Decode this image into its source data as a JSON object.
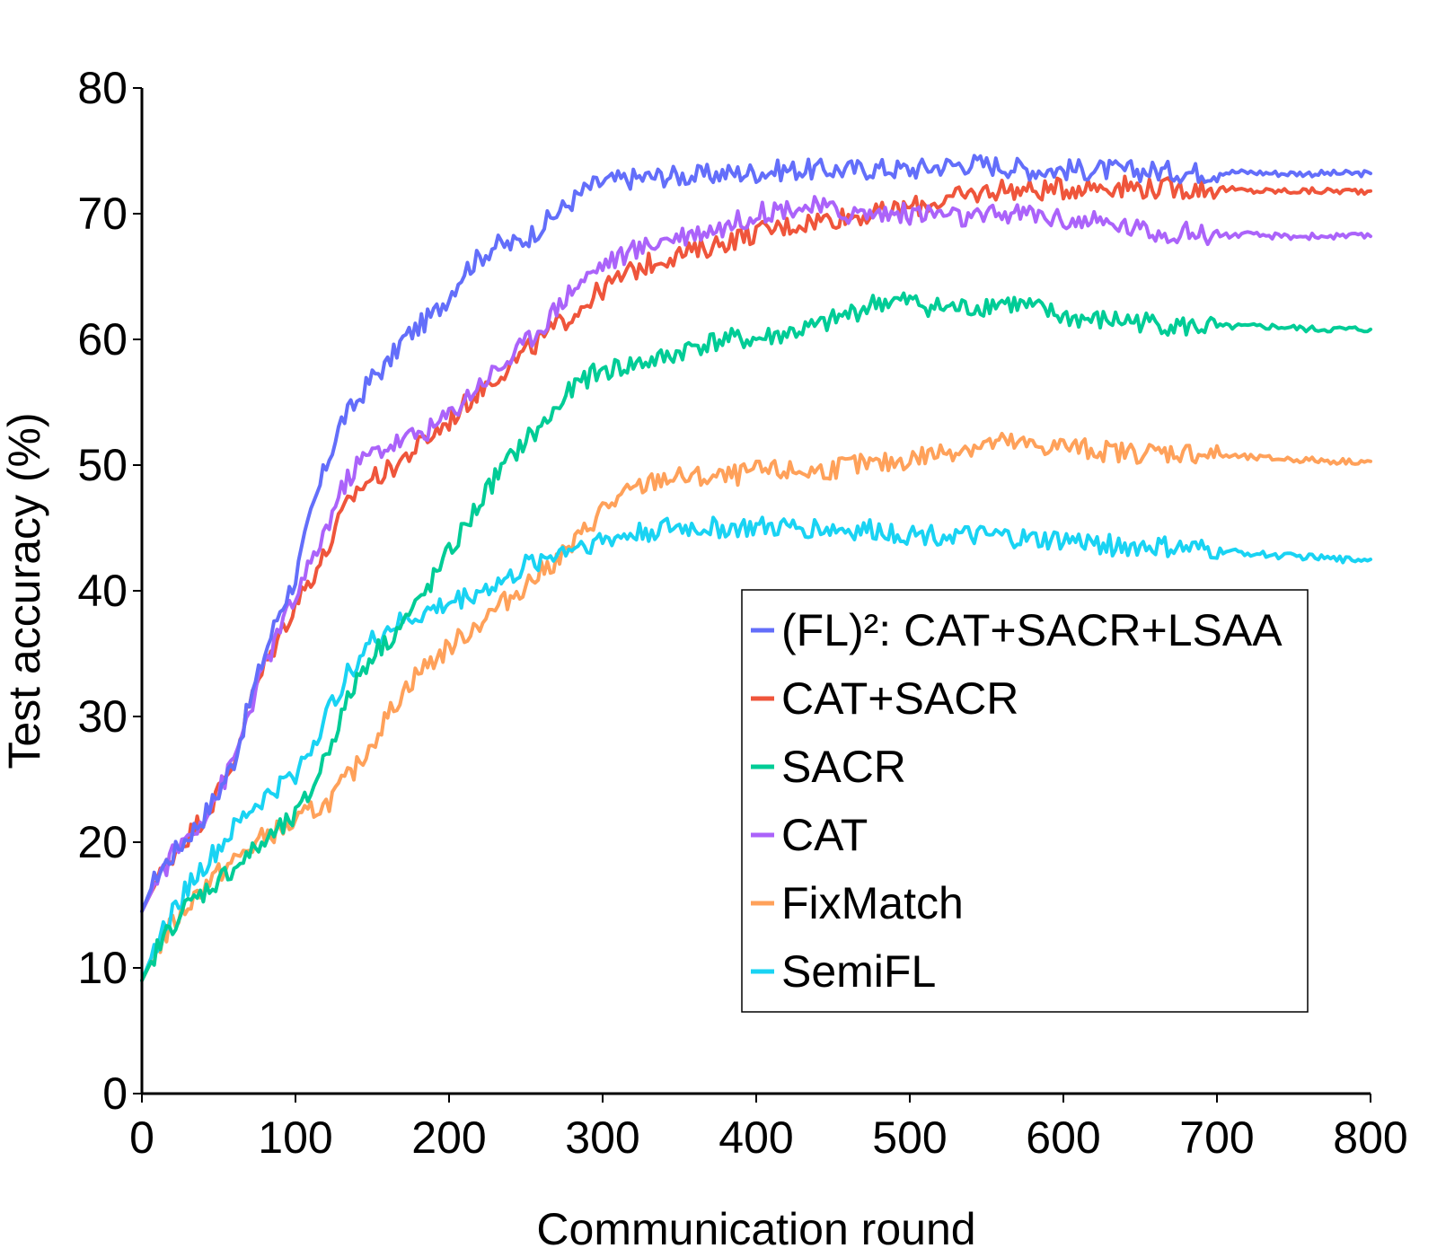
{
  "chart_data": {
    "type": "line",
    "title": "",
    "xlabel": "Communication round",
    "ylabel": "Test accuracy (%)",
    "xlim": [
      0,
      800
    ],
    "ylim": [
      0,
      80
    ],
    "xticks": [
      0,
      100,
      200,
      300,
      400,
      500,
      600,
      700,
      800
    ],
    "yticks": [
      0,
      10,
      20,
      30,
      40,
      50,
      60,
      70,
      80
    ],
    "grid": false,
    "legend_position": "center-right",
    "series": [
      {
        "name": "(FL)²: CAT+SACR+LSAA",
        "color": "#636efa",
        "x": [
          0,
          10,
          20,
          30,
          40,
          50,
          60,
          70,
          80,
          90,
          100,
          110,
          120,
          130,
          140,
          150,
          160,
          170,
          180,
          190,
          200,
          210,
          220,
          230,
          240,
          250,
          260,
          270,
          280,
          290,
          300,
          320,
          340,
          360,
          380,
          400,
          420,
          440,
          460,
          480,
          500,
          520,
          540,
          560,
          580,
          600,
          620,
          640,
          660,
          680,
          700,
          720,
          740,
          760,
          780,
          800
        ],
        "values": [
          14.5,
          17.5,
          19.0,
          20.5,
          22.0,
          24.0,
          26.5,
          31.0,
          35.0,
          38.5,
          41.0,
          46.0,
          50.0,
          53.5,
          55.0,
          57.0,
          58.0,
          60.0,
          61.0,
          62.0,
          63.5,
          65.5,
          66.5,
          67.5,
          67.5,
          68.0,
          69.0,
          70.0,
          71.0,
          72.0,
          72.5,
          72.8,
          73.0,
          73.0,
          73.2,
          73.3,
          73.5,
          73.5,
          73.5,
          73.6,
          73.5,
          73.8,
          74.0,
          73.8,
          73.5,
          73.5,
          73.5,
          73.4,
          73.4,
          73.3,
          73.3,
          73.3,
          73.2,
          73.2,
          73.2,
          73.2
        ]
      },
      {
        "name": "CAT+SACR",
        "color": "#ef553b",
        "x": [
          0,
          10,
          20,
          30,
          40,
          50,
          60,
          70,
          80,
          90,
          100,
          110,
          120,
          130,
          140,
          150,
          160,
          170,
          180,
          190,
          200,
          220,
          240,
          260,
          280,
          300,
          320,
          340,
          360,
          380,
          400,
          420,
          440,
          460,
          480,
          500,
          520,
          540,
          560,
          580,
          600,
          620,
          640,
          660,
          680,
          700,
          720,
          740,
          760,
          780,
          800
        ],
        "values": [
          14.5,
          17.0,
          19.0,
          20.5,
          22.0,
          24.0,
          26.5,
          31.0,
          34.0,
          36.5,
          39.0,
          41.0,
          43.0,
          46.0,
          48.0,
          49.0,
          49.5,
          50.5,
          51.5,
          52.5,
          53.5,
          56.0,
          58.0,
          60.0,
          62.0,
          64.0,
          65.5,
          66.5,
          67.0,
          67.8,
          68.5,
          69.0,
          69.5,
          69.8,
          70.0,
          70.5,
          71.0,
          71.5,
          72.0,
          71.8,
          72.0,
          72.2,
          72.2,
          72.0,
          72.0,
          72.0,
          71.8,
          71.8,
          71.8,
          71.8,
          71.8
        ]
      },
      {
        "name": "SACR",
        "color": "#00cc96",
        "x": [
          0,
          10,
          20,
          30,
          40,
          50,
          60,
          70,
          80,
          90,
          100,
          110,
          120,
          130,
          140,
          150,
          160,
          170,
          180,
          190,
          200,
          210,
          220,
          230,
          240,
          250,
          260,
          270,
          280,
          290,
          300,
          320,
          340,
          360,
          380,
          400,
          420,
          440,
          460,
          480,
          500,
          520,
          540,
          560,
          580,
          600,
          620,
          640,
          660,
          680,
          700,
          720,
          740,
          760,
          780,
          800
        ],
        "values": [
          9.0,
          11.5,
          13.5,
          15.0,
          16.0,
          17.0,
          18.0,
          19.0,
          20.0,
          21.0,
          22.0,
          24.0,
          27.0,
          30.0,
          33.0,
          35.0,
          36.0,
          37.5,
          39.0,
          41.0,
          43.0,
          45.0,
          47.0,
          49.0,
          50.5,
          52.0,
          53.0,
          54.5,
          56.0,
          57.0,
          57.5,
          58.0,
          58.5,
          59.5,
          60.0,
          60.0,
          60.5,
          61.0,
          62.0,
          63.0,
          63.0,
          62.5,
          62.5,
          63.0,
          62.5,
          61.8,
          61.5,
          61.5,
          61.3,
          61.0,
          61.0,
          61.0,
          61.0,
          60.8,
          60.8,
          60.8
        ]
      },
      {
        "name": "CAT",
        "color": "#ab63fa",
        "x": [
          0,
          10,
          20,
          30,
          40,
          50,
          60,
          70,
          80,
          90,
          100,
          110,
          120,
          130,
          140,
          150,
          160,
          170,
          180,
          190,
          200,
          220,
          240,
          260,
          280,
          300,
          320,
          340,
          360,
          380,
          400,
          420,
          440,
          460,
          480,
          500,
          520,
          540,
          560,
          580,
          600,
          620,
          640,
          660,
          680,
          700,
          720,
          740,
          760,
          780,
          800
        ],
        "values": [
          14.5,
          17.0,
          19.0,
          20.5,
          22.0,
          24.0,
          26.5,
          30.5,
          34.0,
          37.0,
          39.5,
          42.0,
          45.0,
          48.0,
          50.0,
          51.0,
          51.5,
          52.0,
          52.5,
          53.0,
          54.0,
          56.5,
          58.5,
          61.0,
          64.0,
          66.0,
          67.0,
          68.0,
          68.5,
          69.0,
          70.0,
          70.5,
          70.5,
          70.0,
          70.0,
          70.0,
          70.0,
          69.5,
          70.0,
          70.0,
          69.5,
          69.3,
          69.0,
          68.5,
          68.5,
          68.3,
          68.3,
          68.2,
          68.2,
          68.2,
          68.2
        ]
      },
      {
        "name": "FixMatch",
        "color": "#ffa15a",
        "x": [
          0,
          10,
          20,
          30,
          40,
          50,
          60,
          70,
          80,
          90,
          100,
          110,
          120,
          130,
          140,
          150,
          160,
          170,
          180,
          190,
          200,
          210,
          220,
          230,
          240,
          250,
          260,
          270,
          280,
          290,
          300,
          320,
          340,
          360,
          380,
          400,
          420,
          440,
          460,
          480,
          500,
          520,
          540,
          560,
          580,
          600,
          620,
          640,
          660,
          680,
          700,
          720,
          740,
          760,
          780,
          800
        ],
        "values": [
          9.0,
          11.5,
          13.5,
          15.0,
          16.5,
          17.5,
          18.5,
          19.5,
          20.5,
          21.0,
          21.5,
          22.5,
          23.0,
          24.5,
          26.0,
          28.0,
          30.0,
          32.0,
          33.5,
          34.5,
          35.5,
          36.5,
          37.5,
          38.5,
          39.5,
          40.5,
          41.5,
          42.5,
          43.5,
          45.0,
          46.5,
          48.0,
          49.0,
          49.0,
          49.0,
          49.5,
          49.5,
          49.5,
          50.0,
          50.0,
          50.5,
          51.0,
          51.5,
          51.8,
          51.5,
          51.5,
          51.2,
          51.0,
          51.0,
          51.0,
          50.8,
          50.6,
          50.5,
          50.4,
          50.3,
          50.3
        ]
      },
      {
        "name": "SemiFL",
        "color": "#19d3f3",
        "x": [
          0,
          10,
          20,
          30,
          40,
          50,
          60,
          70,
          80,
          90,
          100,
          110,
          120,
          130,
          140,
          150,
          160,
          170,
          180,
          190,
          200,
          210,
          220,
          230,
          240,
          250,
          260,
          270,
          280,
          290,
          300,
          320,
          340,
          360,
          380,
          400,
          420,
          440,
          460,
          480,
          500,
          520,
          540,
          560,
          580,
          600,
          620,
          640,
          660,
          680,
          700,
          720,
          740,
          760,
          780,
          800
        ],
        "values": [
          9.0,
          12.0,
          14.5,
          16.5,
          18.0,
          19.5,
          21.0,
          22.5,
          23.5,
          24.5,
          25.5,
          27.5,
          30.0,
          32.5,
          34.5,
          36.0,
          37.0,
          37.5,
          38.0,
          38.5,
          39.0,
          39.5,
          40.0,
          40.5,
          41.0,
          42.0,
          42.5,
          43.0,
          43.5,
          43.8,
          44.0,
          44.5,
          45.0,
          45.0,
          45.0,
          45.0,
          45.0,
          45.0,
          44.8,
          44.8,
          44.5,
          44.5,
          44.3,
          44.3,
          44.0,
          44.0,
          43.8,
          43.5,
          43.5,
          43.3,
          43.2,
          43.0,
          42.8,
          42.7,
          42.5,
          42.5
        ]
      }
    ]
  }
}
